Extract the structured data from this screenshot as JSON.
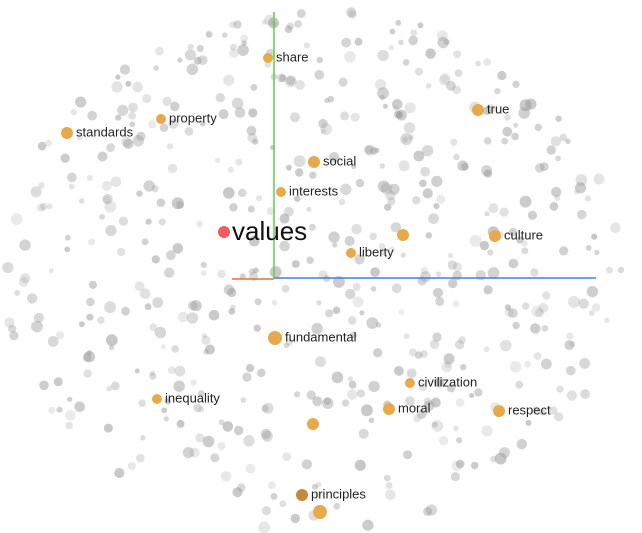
{
  "focus": {
    "label": "values"
  },
  "neighbors": [
    {
      "label": "share"
    },
    {
      "label": "property"
    },
    {
      "label": "standards"
    },
    {
      "label": "true"
    },
    {
      "label": "social"
    },
    {
      "label": "interests"
    },
    {
      "label": "liberty"
    },
    {
      "label": "culture"
    },
    {
      "label": "fundamental"
    },
    {
      "label": "civilization"
    },
    {
      "label": "inequality"
    },
    {
      "label": "moral"
    },
    {
      "label": "respect"
    },
    {
      "label": "principles"
    }
  ]
}
